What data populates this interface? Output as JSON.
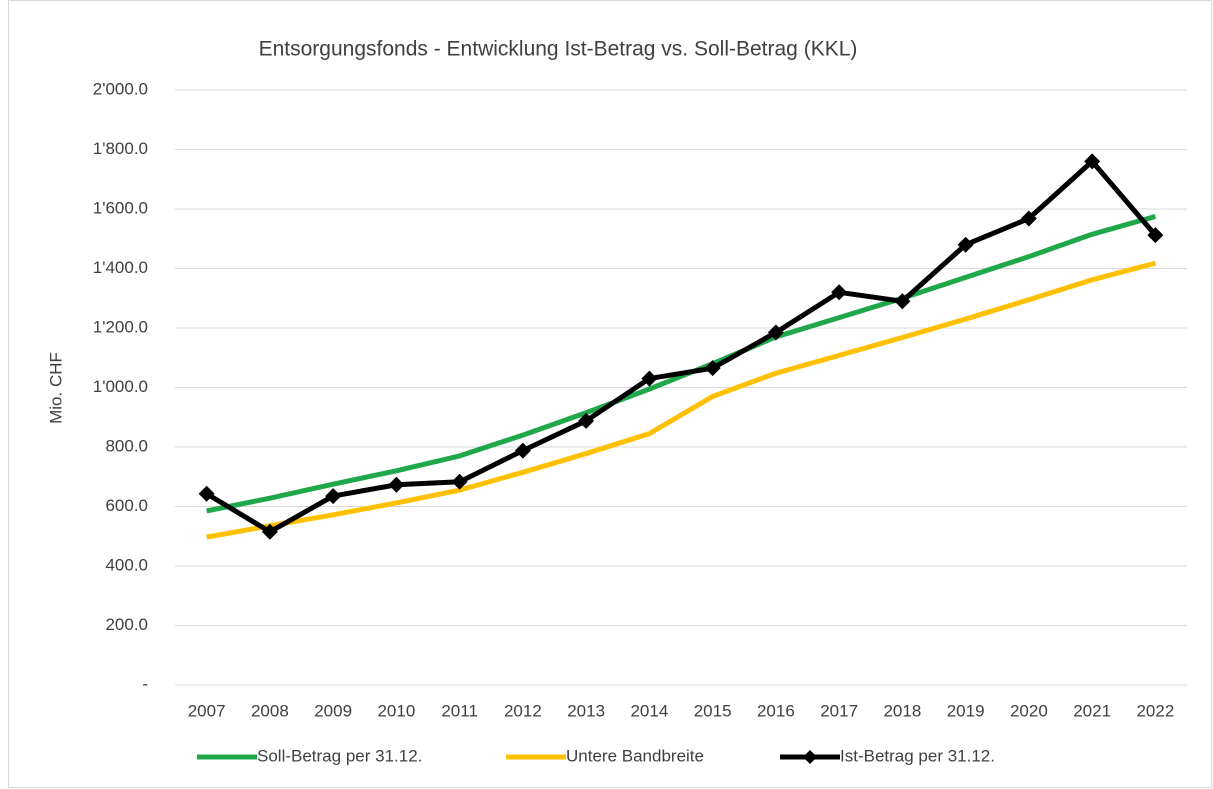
{
  "chart_data": {
    "type": "line",
    "title": "Entsorgungsfonds - Entwicklung Ist-Betrag vs. Soll-Betrag (KKL)",
    "y_label": "Mio. CHF",
    "categories": [
      "2007",
      "2008",
      "2009",
      "2010",
      "2011",
      "2012",
      "2013",
      "2014",
      "2015",
      "2016",
      "2017",
      "2018",
      "2019",
      "2020",
      "2021",
      "2022"
    ],
    "series": [
      {
        "name": "Soll-Betrag per 31.12.",
        "color": "#1fa84a",
        "values": [
          585,
          628,
          675,
          720,
          770,
          840,
          915,
          995,
          1080,
          1170,
          1235,
          1300,
          1370,
          1440,
          1515,
          1575
        ]
      },
      {
        "name": "Untere Bandbreite",
        "color": "#ffc000",
        "values": [
          497,
          535,
          572,
          612,
          655,
          715,
          778,
          845,
          970,
          1048,
          1108,
          1168,
          1230,
          1295,
          1362,
          1418
        ]
      },
      {
        "name": "Ist-Betrag per 31.12.",
        "color": "#000000",
        "marker": "diamond",
        "values": [
          643,
          515,
          635,
          673,
          683,
          788,
          888,
          1030,
          1065,
          1185,
          1320,
          1290,
          1480,
          1568,
          1760,
          1512
        ]
      }
    ],
    "ylim": [
      0,
      2000
    ],
    "yticks": [
      {
        "value": 0,
        "label": "-"
      },
      {
        "value": 200,
        "label": "200.0"
      },
      {
        "value": 400,
        "label": "400.0"
      },
      {
        "value": 600,
        "label": "600.0"
      },
      {
        "value": 800,
        "label": "800.0"
      },
      {
        "value": 1000,
        "label": "1'000.0"
      },
      {
        "value": 1200,
        "label": "1'200.0"
      },
      {
        "value": 1400,
        "label": "1'400.0"
      },
      {
        "value": 1600,
        "label": "1'600.0"
      },
      {
        "value": 1800,
        "label": "1'800.0"
      },
      {
        "value": 2000,
        "label": "2'000.0"
      }
    ],
    "grid": true,
    "legend": "bottom"
  }
}
